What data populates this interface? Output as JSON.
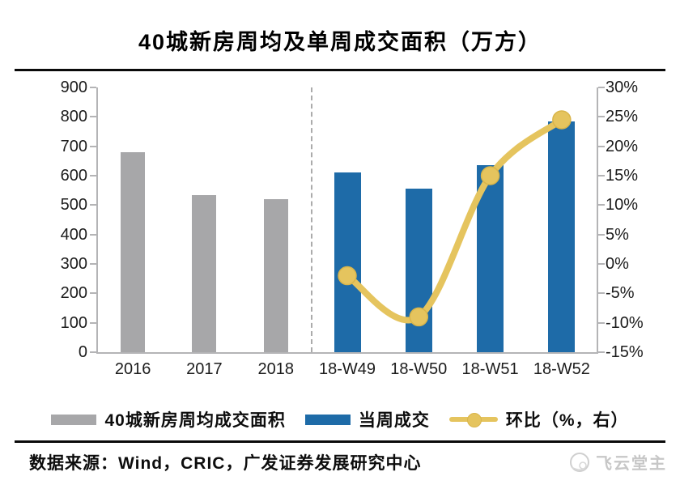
{
  "title": "40城新房周均及单周成交面积（万方）",
  "colors": {
    "gray_bar": "#a7a7a9",
    "blue_bar": "#1e6ba8",
    "gold_line": "#e5c45e",
    "gold_marker_edge": "#d9b54a",
    "axis": "#b4b4b6",
    "watermark": "#c7c7c7"
  },
  "legend": {
    "items": [
      {
        "label": "40城新房周均成交面积",
        "swatch": "gray-bar"
      },
      {
        "label": "当周成交",
        "swatch": "blue-bar"
      },
      {
        "label": "环比（%，右）",
        "swatch": "gold-line"
      }
    ]
  },
  "footer": {
    "source": "数据来源：Wind，CRIC，广发证券发展研究中心",
    "watermark": "飞云堂主"
  },
  "chart_data": {
    "type": "bar",
    "subtype": "bar+line-dual-axis",
    "title": "40城新房周均及单周成交面积（万方）",
    "categories": [
      "2016",
      "2017",
      "2018",
      "18-W49",
      "18-W50",
      "18-W51",
      "18-W52"
    ],
    "series": [
      {
        "name": "40城新房周均成交面积",
        "type": "bar",
        "axis": "left",
        "color_key": "gray_bar",
        "values": [
          680,
          535,
          520,
          null,
          null,
          null,
          null
        ]
      },
      {
        "name": "当周成交",
        "type": "bar",
        "axis": "left",
        "color_key": "blue_bar",
        "values": [
          null,
          null,
          null,
          610,
          555,
          635,
          785
        ]
      },
      {
        "name": "环比（%，右）",
        "type": "line",
        "axis": "right",
        "color_key": "gold_line",
        "values": [
          null,
          null,
          null,
          -2,
          -9,
          15,
          24.5
        ]
      }
    ],
    "left_axis": {
      "min": 0,
      "max": 900,
      "step": 100,
      "ticks_top_to_bottom": [
        "900",
        "800",
        "700",
        "600",
        "500",
        "400",
        "300",
        "200",
        "100",
        "0"
      ]
    },
    "right_axis": {
      "min": -15,
      "max": 30,
      "step": 5,
      "ticks_top_to_bottom": [
        "30%",
        "25%",
        "20%",
        "15%",
        "10%",
        "5%",
        "0%",
        "-5%",
        "-10%",
        "-15%"
      ]
    },
    "separator_after_category": "2018",
    "grid": false,
    "legend_position": "bottom",
    "xlabel": "",
    "ylabel_left": "",
    "ylabel_right": ""
  }
}
